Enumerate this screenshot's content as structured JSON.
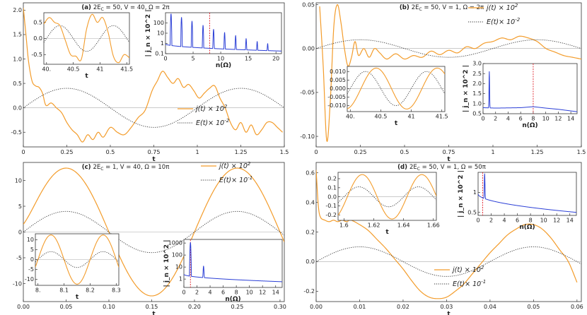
{
  "chart_data": [
    {
      "id": "a",
      "type": "line",
      "title": "(a) 2E_C = 50,   V = 40,   Ω = 2π",
      "title_parts": {
        "label": "(a)",
        "ec": "2E",
        "ec_sub": "C",
        "ec_val": " = 50,   V = 40,   Ω = 2π"
      },
      "xlabel": "t",
      "xlim": [
        0,
        1.5
      ],
      "ylim": [
        -0.8,
        2.15
      ],
      "xticks": [
        0,
        0.25,
        0.5,
        0.75,
        1,
        1.25,
        1.5
      ],
      "xtick_labels": [
        "0",
        "0.25",
        "0.5",
        "0.75",
        "1",
        "1.25",
        "1.5"
      ],
      "yticks": [
        -0.5,
        0,
        0.5,
        1,
        1.5,
        2
      ],
      "ytick_labels": [
        "-0.5",
        "0.0",
        "0.5",
        "1.0",
        "1.5",
        "2.0"
      ],
      "legend": [
        {
          "label": "j(t) × 10",
          "sup": "2"
        },
        {
          "label": "E(t)× 10",
          "sup": "-2"
        }
      ],
      "series": [
        {
          "name": "j(t) × 10^2",
          "color": "#f39c2b",
          "style": "solid",
          "x": [
            0,
            0.015,
            0.03,
            0.05,
            0.07,
            0.09,
            0.11,
            0.13,
            0.16,
            0.19,
            0.22,
            0.25,
            0.28,
            0.31,
            0.34,
            0.37,
            0.4,
            0.43,
            0.46,
            0.5,
            0.54,
            0.58,
            0.62,
            0.66,
            0.7,
            0.74,
            0.77,
            0.8,
            0.83,
            0.86,
            0.89,
            0.92,
            0.95,
            0.98,
            1.01,
            1.04,
            1.07,
            1.1,
            1.13,
            1.16,
            1.19,
            1.22,
            1.25,
            1.28,
            1.31,
            1.34,
            1.37,
            1.4,
            1.43,
            1.46,
            1.49
          ],
          "y": [
            2.05,
            1.5,
            0.95,
            0.55,
            0.45,
            0.42,
            0.3,
            0.05,
            0.1,
            0.0,
            -0.1,
            -0.3,
            -0.45,
            -0.55,
            -0.7,
            -0.55,
            -0.65,
            -0.5,
            -0.6,
            -0.4,
            -0.5,
            -0.55,
            -0.4,
            -0.2,
            -0.05,
            0.35,
            0.55,
            0.75,
            0.62,
            0.5,
            0.6,
            0.42,
            0.48,
            0.35,
            0.2,
            0.3,
            0.4,
            0.45,
            0.2,
            0.0,
            -0.3,
            -0.45,
            -0.3,
            -0.5,
            -0.35,
            -0.55,
            -0.45,
            -0.3,
            -0.3,
            -0.4,
            -0.5
          ]
        },
        {
          "name": "E(t) × 10^-2",
          "color": "#333333",
          "style": "dotted",
          "func": "sin",
          "amp": 0.4,
          "period": 1.0,
          "phase": 0
        }
      ],
      "inset_left": {
        "xlabel": "t",
        "xlim": [
          39.95,
          41.55
        ],
        "ylim": [
          -0.8,
          0.8
        ],
        "xticks": [
          40,
          40.5,
          41,
          41.5
        ],
        "xtick_labels": [
          "40.",
          "40.5",
          "41",
          "41.5"
        ],
        "yticks": [
          -0.5,
          0,
          0.5
        ],
        "ytick_labels": [
          "-0.5",
          "0.0",
          "0.5"
        ],
        "j": {
          "x": [
            39.95,
            40.05,
            40.15,
            40.25,
            40.35,
            40.45,
            40.55,
            40.65,
            40.75,
            40.85,
            40.95,
            41.05,
            41.15,
            41.25,
            41.35,
            41.45,
            41.55
          ],
          "y": [
            0.45,
            0.65,
            0.5,
            0.4,
            -0.05,
            -0.5,
            -0.55,
            -0.65,
            0.3,
            0.75,
            0.5,
            0.65,
            0.2,
            -0.55,
            -0.75,
            -0.5,
            -0.6
          ]
        },
        "e_amp": 0.4
      },
      "inset_right": {
        "xlabel": "n(Ω)",
        "ylabel": "| j_n × 10^2 |",
        "xlim": [
          0,
          21
        ],
        "ylim": [
          0.1,
          1000
        ],
        "scale": "log",
        "xticks": [
          0,
          5,
          10,
          15,
          20
        ],
        "xtick_labels": [
          "0",
          "5",
          "10",
          "15",
          "20"
        ],
        "yticks": [
          0.1,
          1,
          10,
          100
        ],
        "ytick_labels": [
          "0.1",
          "1",
          "10",
          "100"
        ],
        "peaks": [
          {
            "n": 1,
            "h": 800
          },
          {
            "n": 2.9,
            "h": 350
          },
          {
            "n": 4.8,
            "h": 150
          },
          {
            "n": 6.8,
            "h": 60
          },
          {
            "n": 8.7,
            "h": 25
          },
          {
            "n": 10.7,
            "h": 12
          },
          {
            "n": 12.7,
            "h": 6
          },
          {
            "n": 14.6,
            "h": 3
          },
          {
            "n": 16.6,
            "h": 1.6
          },
          {
            "n": 18.5,
            "h": 1.0
          }
        ],
        "base_start": 0.9,
        "base_end": 0.18,
        "marker_n": 8
      }
    },
    {
      "id": "b",
      "type": "line",
      "title": "(b) 2E_C = 50,   V = 1,   Ω = 2π",
      "title_parts": {
        "label": "(b)",
        "ec": "2E",
        "ec_sub": "C",
        "ec_val": " = 50,   V = 1,   Ω = 2π"
      },
      "xlabel": "t",
      "xlim": [
        0,
        1.5
      ],
      "ylim": [
        -0.112,
        0.052
      ],
      "xticks": [
        0,
        0.25,
        0.5,
        0.75,
        1,
        1.25,
        1.5
      ],
      "xtick_labels": [
        "0",
        "0.25",
        "0.5",
        "0.75",
        "1",
        "1.25",
        "1.5"
      ],
      "yticks": [
        -0.1,
        -0.05,
        0,
        0.05
      ],
      "ytick_labels": [
        "-0.10",
        "-0.05",
        "0.00",
        "0.05"
      ],
      "legend": [
        {
          "label": "j(t) × 10",
          "sup": "2"
        },
        {
          "label": "E(t)× 10",
          "sup": "-2"
        }
      ],
      "series": [
        {
          "name": "j(t) × 10^2",
          "color": "#f39c2b",
          "style": "solid",
          "x": [
            0.02,
            0.04,
            0.06,
            0.08,
            0.1,
            0.12,
            0.14,
            0.16,
            0.18,
            0.2,
            0.22,
            0.24,
            0.27,
            0.3,
            0.33,
            0.36,
            0.4,
            0.45,
            0.5,
            0.55,
            0.6,
            0.65,
            0.7,
            0.75,
            0.8,
            0.85,
            0.9,
            0.95,
            1.0,
            1.05,
            1.1,
            1.15,
            1.2,
            1.25,
            1.3,
            1.35,
            1.4,
            1.45,
            1.5
          ],
          "y": [
            0.048,
            -0.02,
            -0.105,
            -0.06,
            0.025,
            0.05,
            0.03,
            0.0,
            -0.02,
            -0.01,
            0.008,
            -0.008,
            0.0,
            -0.01,
            0.0,
            -0.005,
            -0.012,
            -0.006,
            -0.012,
            -0.008,
            -0.01,
            -0.003,
            -0.007,
            -0.002,
            -0.005,
            0.002,
            0.0,
            0.006,
            0.008,
            0.012,
            0.01,
            0.014,
            0.012,
            0.008,
            0.0,
            -0.004,
            -0.008,
            -0.01,
            -0.012
          ]
        },
        {
          "name": "E(t) × 10^-2",
          "color": "#333333",
          "style": "dotted",
          "func": "sin",
          "amp": 0.01,
          "period": 1.0,
          "phase": 0
        }
      ],
      "inset_left": {
        "xlabel": "t",
        "xlim": [
          39.95,
          41.55
        ],
        "ylim": [
          -0.0135,
          0.013
        ],
        "xticks": [
          40,
          40.5,
          41,
          41.5
        ],
        "xtick_labels": [
          "40.",
          "40.5",
          "41",
          "41.5"
        ],
        "yticks": [
          -0.01,
          -0.005,
          0,
          0.005,
          0.01
        ],
        "ytick_labels": [
          "-0.010",
          "-0.005",
          "0.000",
          "0.005",
          "0.010"
        ],
        "j_amp": 0.012,
        "j_phase": -1.1,
        "e_amp": 0.01
      },
      "inset_right": {
        "xlabel": "n(Ω)",
        "ylabel": "| j_n × 10^2 |",
        "xlim": [
          0,
          15
        ],
        "ylim": [
          0.5,
          3.0
        ],
        "scale": "linear",
        "xticks": [
          0,
          2,
          4,
          6,
          8,
          10,
          12,
          14
        ],
        "xtick_labels": [
          "0",
          "2",
          "4",
          "6",
          "8",
          "10",
          "12",
          "14"
        ],
        "yticks": [
          0.5,
          1,
          1.5,
          2,
          2.5,
          3
        ],
        "ytick_labels": [
          "0.5",
          "1.0",
          "1.5",
          "2.0",
          "2.5",
          "3.0"
        ],
        "peaks": [
          {
            "n": 1,
            "h": 2.6
          }
        ],
        "base_points": [
          [
            0,
            0.8
          ],
          [
            2,
            0.78
          ],
          [
            6,
            0.8
          ],
          [
            8,
            0.85
          ],
          [
            10,
            0.78
          ],
          [
            12,
            0.72
          ],
          [
            15,
            0.6
          ]
        ],
        "marker_n": 8
      }
    },
    {
      "id": "c",
      "type": "line",
      "title": "(c) 2E_C = 1,   V = 40,   Ω = 10π",
      "title_parts": {
        "label": "(c)",
        "ec": "2E",
        "ec_sub": "C",
        "ec_val": " = 1,   V = 40,   Ω = 10π"
      },
      "xlabel": "t",
      "xlim": [
        0,
        0.305
      ],
      "ylim": [
        -13.5,
        13.5
      ],
      "xticks": [
        0,
        0.05,
        0.1,
        0.15,
        0.2,
        0.25,
        0.3
      ],
      "xtick_labels": [
        "0.00",
        "0.05",
        "0.10",
        "0.15",
        "0.20",
        "0.25",
        "0.30"
      ],
      "yticks": [
        -10,
        -5,
        0,
        5,
        10
      ],
      "ytick_labels": [
        "-10",
        "-5",
        "0",
        "5",
        "10"
      ],
      "legend": [
        {
          "label": "j(t) × 10",
          "sup": "2"
        },
        {
          "label": "E(t)× 10",
          "sup": "-1"
        }
      ],
      "series": [
        {
          "name": "j(t) × 10^2",
          "color": "#f39c2b",
          "style": "solid",
          "func": "cos-sin",
          "amp": 12.4,
          "period": 0.2,
          "phase": 0.05,
          "start": 1.5
        },
        {
          "name": "E(t) × 10^-1",
          "color": "#333333",
          "style": "dotted",
          "func": "sin",
          "amp": 4.0,
          "period": 0.2,
          "phase": 0
        }
      ],
      "inset_left": {
        "xlabel": "t",
        "xlim": [
          7.99,
          8.31
        ],
        "ylim": [
          -13,
          13
        ],
        "xticks": [
          8,
          8.1,
          8.2,
          8.3
        ],
        "xtick_labels": [
          "8.",
          "8.1",
          "8.2",
          "8.3"
        ],
        "yticks": [
          -10,
          -5,
          0,
          5,
          10
        ],
        "ytick_labels": [
          "-10",
          "-5",
          "0",
          "5",
          "10"
        ],
        "j_amp": 12.4,
        "period": 0.2,
        "e_amp": 4.0
      },
      "inset_right": {
        "xlabel": "n(Ω)",
        "ylabel": "| j_n × 10^2 |",
        "xlim": [
          0,
          15
        ],
        "ylim": [
          0.2,
          2000
        ],
        "scale": "log",
        "xticks": [
          0,
          2,
          4,
          6,
          8,
          10,
          12,
          14
        ],
        "xtick_labels": [
          "0",
          "2",
          "4",
          "6",
          "8",
          "10",
          "12",
          "14"
        ],
        "yticks": [
          1,
          10,
          100,
          1000
        ],
        "ytick_labels": [
          "1",
          "10",
          "100",
          "1000"
        ],
        "peaks": [
          {
            "n": 1,
            "h": 1100
          },
          {
            "n": 3,
            "h": 12
          }
        ],
        "base_start": 2.5,
        "base_end": 0.6,
        "marker_n": 1
      }
    },
    {
      "id": "d",
      "type": "line",
      "title": "(d) 2E_C = 50,   V = 1,   Ω = 50π",
      "title_parts": {
        "label": "(d)",
        "ec": "2E",
        "ec_sub": "C",
        "ec_val": " = 50,   V = 1,   Ω = 50π"
      },
      "xlabel": "t",
      "xlim": [
        0,
        0.061
      ],
      "ylim": [
        -0.27,
        0.67
      ],
      "xticks": [
        0,
        0.01,
        0.02,
        0.03,
        0.04,
        0.05,
        0.06
      ],
      "xtick_labels": [
        "0.00",
        "0.01",
        "0.02",
        "0.03",
        "0.04",
        "0.05",
        "0.06"
      ],
      "yticks": [
        -0.2,
        0,
        0.2,
        0.4,
        0.6
      ],
      "ytick_labels": [
        "-0.2",
        "0.0",
        "0.2",
        "0.4",
        "0.6"
      ],
      "legend": [
        {
          "label": "j(t) × 10",
          "sup": "2"
        },
        {
          "label": "E(t)× 10",
          "sup": "-1"
        }
      ],
      "series": [
        {
          "name": "j(t) × 10^2",
          "color": "#f39c2b",
          "style": "solid",
          "x": [
            0.0,
            0.0005,
            0.001,
            0.002,
            0.003,
            0.004,
            0.005,
            0.006,
            0.007,
            0.008,
            0.01,
            0.012,
            0.014,
            0.016,
            0.018,
            0.02,
            0.022,
            0.024,
            0.026,
            0.028,
            0.03,
            0.032,
            0.034,
            0.036,
            0.038,
            0.04,
            0.042,
            0.044,
            0.046,
            0.048,
            0.05,
            0.052,
            0.054,
            0.056,
            0.058,
            0.06
          ],
          "y": [
            0.62,
            0.38,
            0.3,
            0.28,
            0.27,
            0.28,
            0.27,
            0.28,
            0.27,
            0.28,
            0.25,
            0.21,
            0.15,
            0.09,
            0.02,
            -0.05,
            -0.13,
            -0.2,
            -0.24,
            -0.25,
            -0.24,
            -0.2,
            -0.15,
            -0.08,
            -0.01,
            0.06,
            0.12,
            0.18,
            0.22,
            0.25,
            0.25,
            0.22,
            0.16,
            0.08,
            0.0,
            -0.14
          ]
        },
        {
          "name": "E(t) × 10^-1",
          "color": "#333333",
          "style": "dotted",
          "func": "sin",
          "amp": 0.1,
          "period": 0.04,
          "phase": 0
        }
      ],
      "inset_left": {
        "xlabel": "t",
        "xlim": [
          1.596,
          1.662
        ],
        "ylim": [
          -0.26,
          0.27
        ],
        "xticks": [
          1.6,
          1.62,
          1.64,
          1.66
        ],
        "xtick_labels": [
          "1.6",
          "1.62",
          "1.64",
          "1.66"
        ],
        "yticks": [
          -0.2,
          -0.1,
          0,
          0.1,
          0.2
        ],
        "ytick_labels": [
          "-0.2",
          "-0.1",
          "0.0",
          "0.1",
          "0.2"
        ],
        "j_amp": 0.245,
        "j_phase": -0.35,
        "e_amp": 0.11,
        "period": 0.04
      },
      "inset_right": {
        "xlabel": "n(Ω)",
        "ylabel": "| j_n × 10^2 |",
        "xlim": [
          0,
          15
        ],
        "ylim": [
          0.45,
          2
        ],
        "scale": "log",
        "xticks": [
          0,
          2,
          4,
          6,
          8,
          10,
          12,
          14
        ],
        "xtick_labels": [
          "0",
          "2",
          "4",
          "6",
          "8",
          "10",
          "12",
          "14"
        ],
        "yticks": [
          0.5,
          1
        ],
        "ytick_labels": [
          "0.5",
          "1"
        ],
        "peaks": [
          {
            "n": 1,
            "h": 1.9
          }
        ],
        "base_start": 0.95,
        "base_end": 0.5,
        "marker_n": 0.7
      }
    }
  ]
}
